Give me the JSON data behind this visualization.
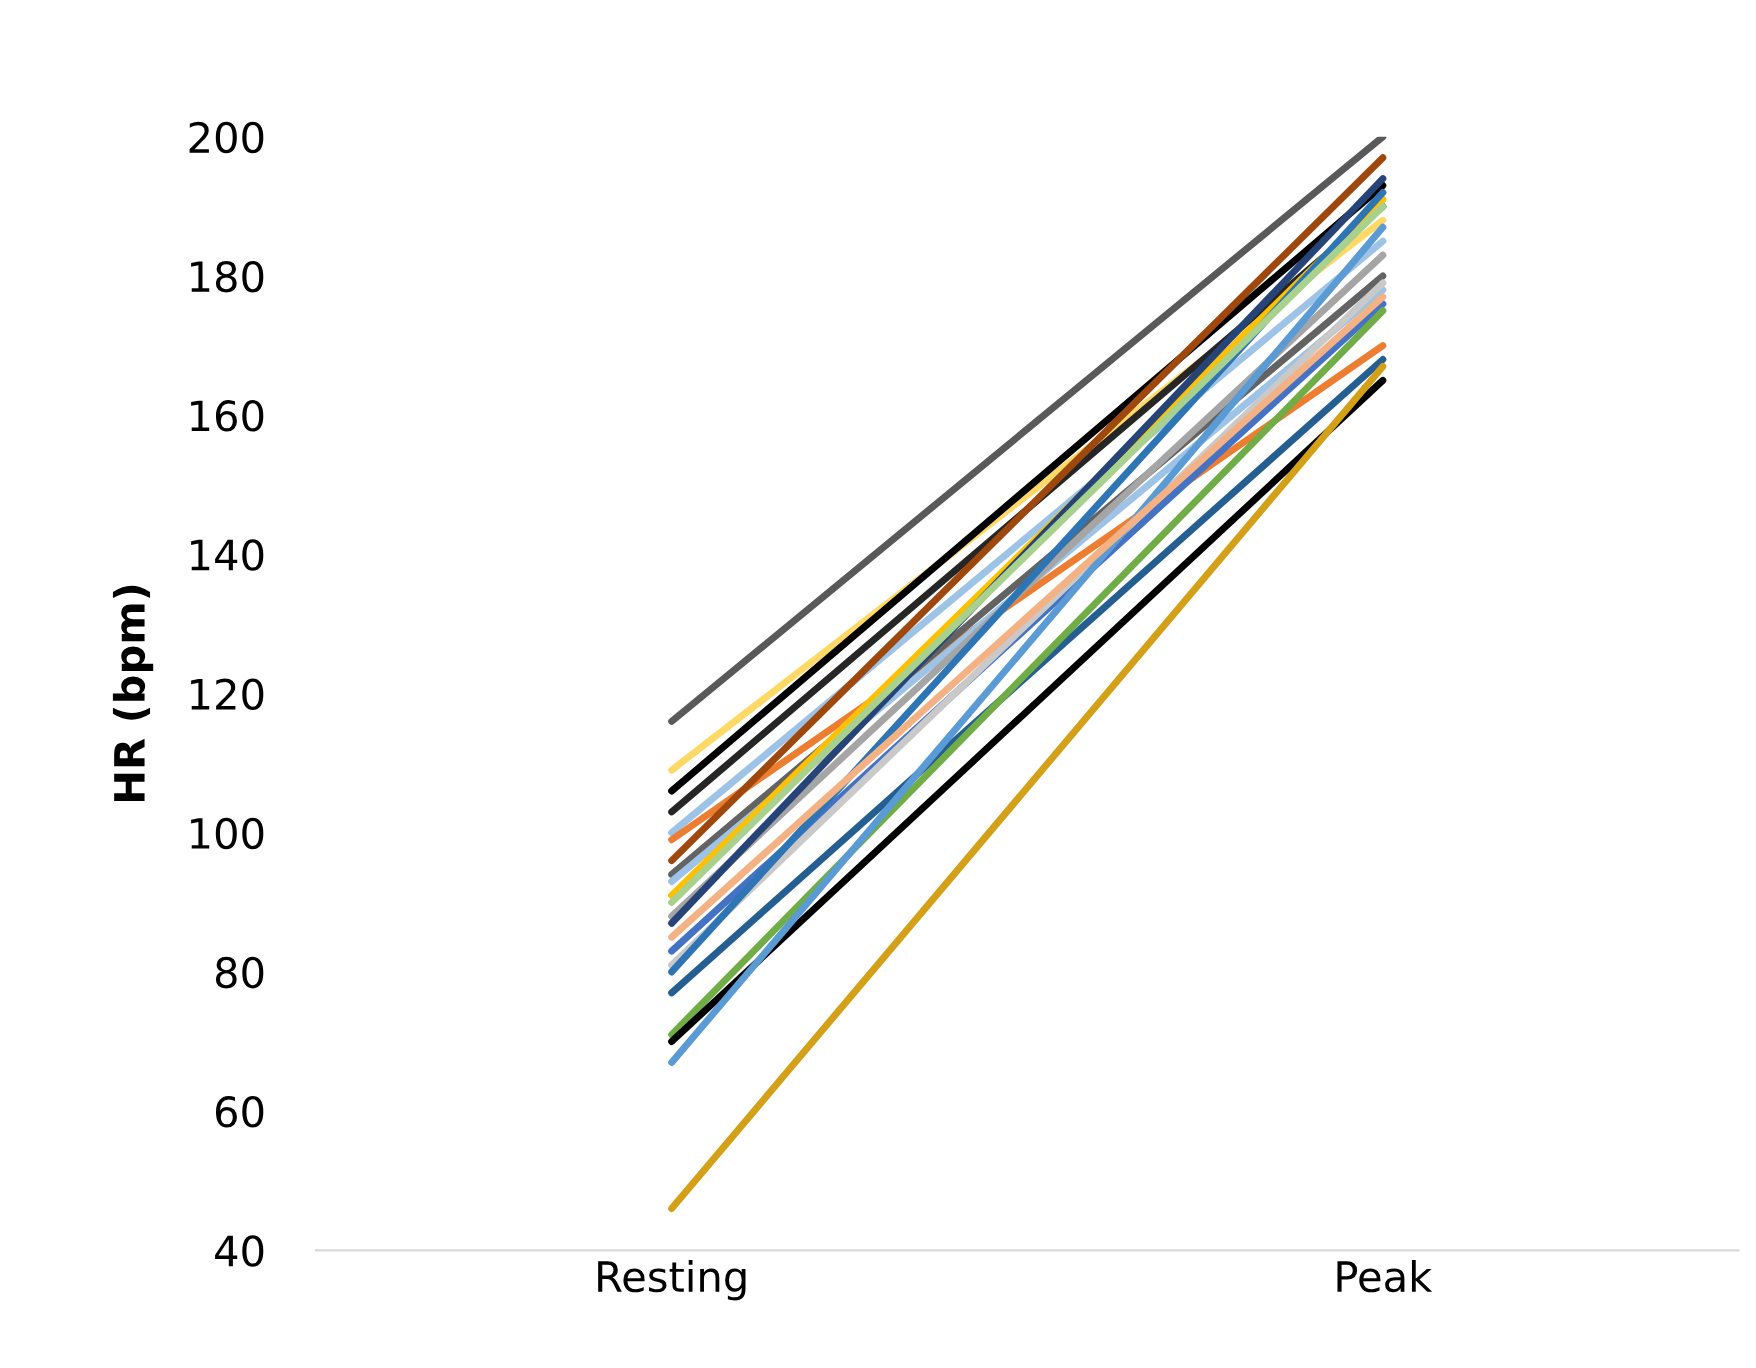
{
  "chart_data": {
    "type": "line",
    "ylabel": "HR (bpm)",
    "categories": [
      "Resting",
      "Peak"
    ],
    "ylim": [
      40,
      200
    ],
    "yticks": [
      40,
      60,
      80,
      100,
      120,
      140,
      160,
      180,
      200
    ],
    "grid": false,
    "legend": false,
    "marker": "none",
    "line_style": "solid",
    "series": [
      {
        "color": "#595959",
        "values": [
          116,
          200
        ]
      },
      {
        "color": "#ffd966",
        "values": [
          109,
          188
        ]
      },
      {
        "color": "#000000",
        "values": [
          106,
          193
        ]
      },
      {
        "color": "#262626",
        "values": [
          103,
          190
        ]
      },
      {
        "color": "#9dc3e6",
        "values": [
          100,
          185
        ]
      },
      {
        "color": "#ed7d31",
        "values": [
          99,
          170
        ]
      },
      {
        "color": "#9e480e",
        "values": [
          96,
          197
        ]
      },
      {
        "color": "#636363",
        "values": [
          94,
          180
        ]
      },
      {
        "color": "#9dc3e6",
        "values": [
          93,
          178
        ]
      },
      {
        "color": "#ffc000",
        "values": [
          91,
          191
        ]
      },
      {
        "color": "#a5a5a5",
        "values": [
          88,
          183
        ]
      },
      {
        "color": "#264478",
        "values": [
          87,
          194
        ]
      },
      {
        "color": "#4472c4",
        "values": [
          83,
          176
        ]
      },
      {
        "color": "#c9c9c9",
        "values": [
          81,
          179
        ]
      },
      {
        "color": "#2e75b6",
        "values": [
          80,
          192
        ]
      },
      {
        "color": "#255e91",
        "values": [
          77,
          168
        ]
      },
      {
        "color": "#70ad47",
        "values": [
          71,
          175
        ]
      },
      {
        "color": "#000000",
        "values": [
          70,
          165
        ]
      },
      {
        "color": "#5b9bd5",
        "values": [
          67,
          187
        ]
      },
      {
        "color": "#f4b183",
        "values": [
          85,
          177
        ]
      },
      {
        "color": "#a9d18e",
        "values": [
          90,
          190
        ]
      },
      {
        "color": "#d4a017",
        "values": [
          46,
          167
        ]
      }
    ]
  }
}
